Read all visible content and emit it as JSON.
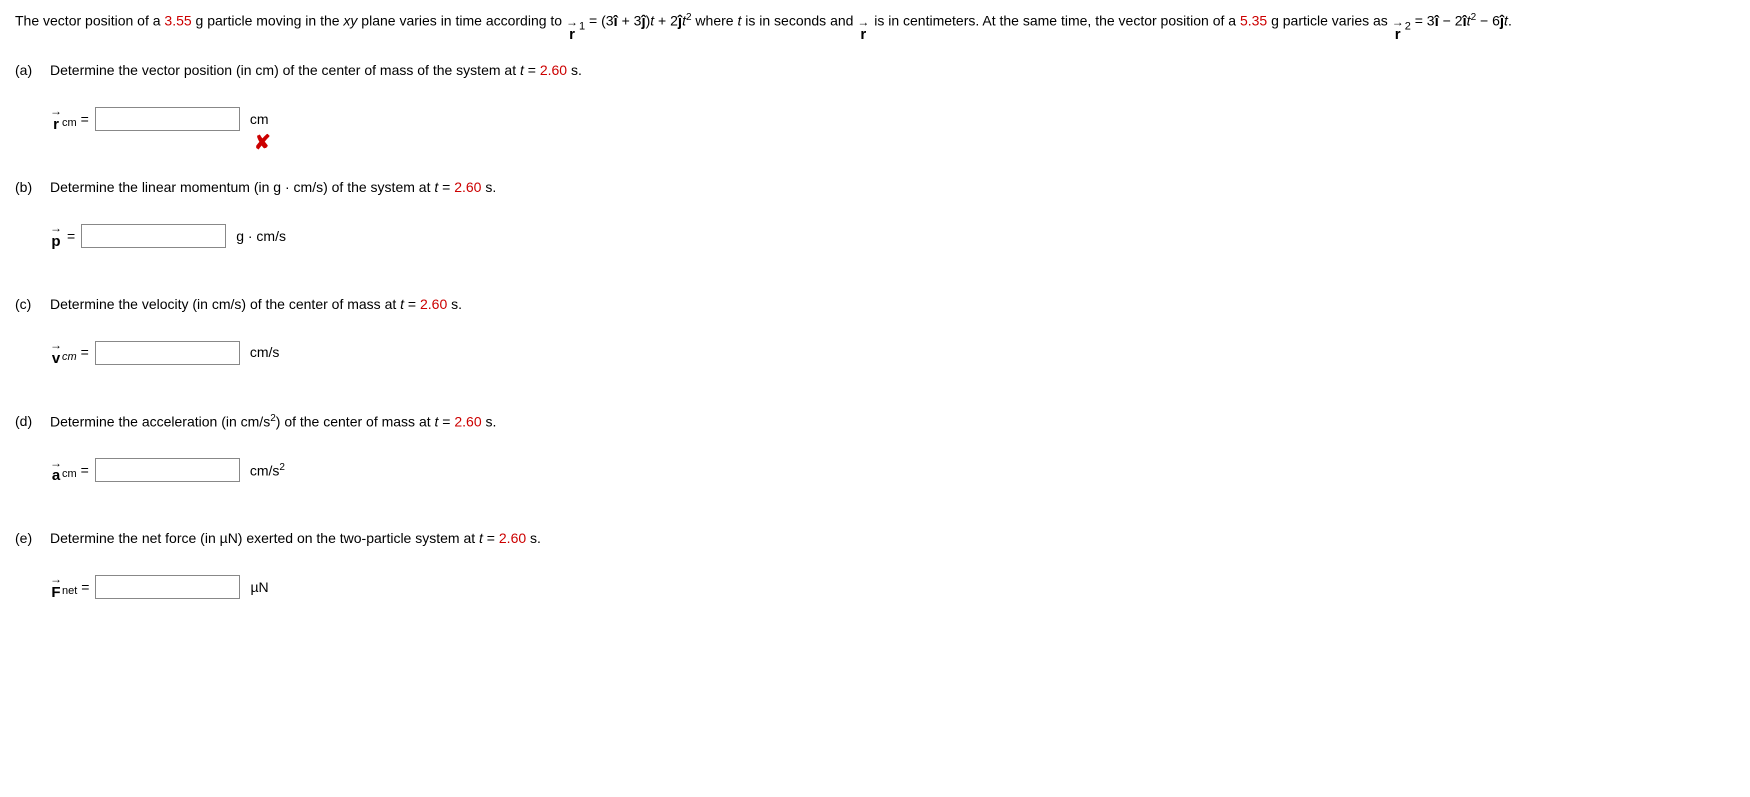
{
  "intro": {
    "seg1": "The vector position of a ",
    "mass1": "3.55",
    "seg2": " g particle moving in the ",
    "plane": "xy",
    "seg3": " plane varies in time according to ",
    "r_letter": "r",
    "r_arrow": "→",
    "sub1": "1",
    "seg4": " = (3",
    "ihat": "î",
    "seg5": " + 3",
    "jhat": "ĵ",
    "seg6": ")",
    "t1": "t",
    "seg7": " + 2",
    "jhat2": "ĵ",
    "t2": "t",
    "sq": "2",
    "seg8": " where ",
    "t3": "t",
    "seg9": " is in seconds and ",
    "r_letter2": "r",
    "r_arrow2": "→",
    "seg10": " is in centimeters. At the same time, the vector position of a ",
    "mass2": "5.35",
    "seg11": " g particle varies as ",
    "r_letter3": "r",
    "r_arrow3": "→",
    "sub2": "2",
    "seg12": " = 3",
    "ihat2": "î",
    "seg13": " − 2",
    "ihat3": "î",
    "t4": "t",
    "sq2": "2",
    "seg14": " − 6",
    "jhat3": "ĵ",
    "t5": "t",
    "seg15": "."
  },
  "parts": {
    "a": {
      "label": "(a)",
      "pre": "Determine the vector position (in cm) of the center of mass of the system at ",
      "t": "t",
      "eq": " = ",
      "val": "2.60",
      "post": " s.",
      "sym_arrow": "→",
      "sym_letter": "r",
      "sym_sub": "cm",
      "equals": " = ",
      "unit": "cm",
      "feedback": "✘"
    },
    "b": {
      "label": "(b)",
      "pre": "Determine the linear momentum (in g · cm/s) of the system at ",
      "t": "t",
      "eq": " = ",
      "val": "2.60",
      "post": " s.",
      "sym_arrow": "→",
      "sym_letter": "p",
      "equals": " = ",
      "unit": "g · cm/s"
    },
    "c": {
      "label": "(c)",
      "pre": "Determine the velocity (in cm/s) of the center of mass at ",
      "t": "t",
      "eq": " = ",
      "val": "2.60",
      "post": " s.",
      "sym_arrow": "→",
      "sym_letter": "v",
      "sym_sub": "cm",
      "equals": " = ",
      "unit": "cm/s"
    },
    "d": {
      "label": "(d)",
      "pre": "Determine the acceleration (in cm/s",
      "sup": "2",
      "mid": ") of the center of mass at ",
      "t": "t",
      "eq": " = ",
      "val": "2.60",
      "post": " s.",
      "sym_arrow": "→",
      "sym_letter": "a",
      "sym_sub": "cm",
      "equals": " = ",
      "unit_pre": "cm/s",
      "unit_sup": "2"
    },
    "e": {
      "label": "(e)",
      "pre": "Determine the net force (in µN) exerted on the two-particle system at ",
      "t": "t",
      "eq": " = ",
      "val": "2.60",
      "post": " s.",
      "sym_arrow": "→",
      "sym_letter": "F",
      "sym_sub": "net",
      "equals": " = ",
      "unit": "µN"
    }
  }
}
